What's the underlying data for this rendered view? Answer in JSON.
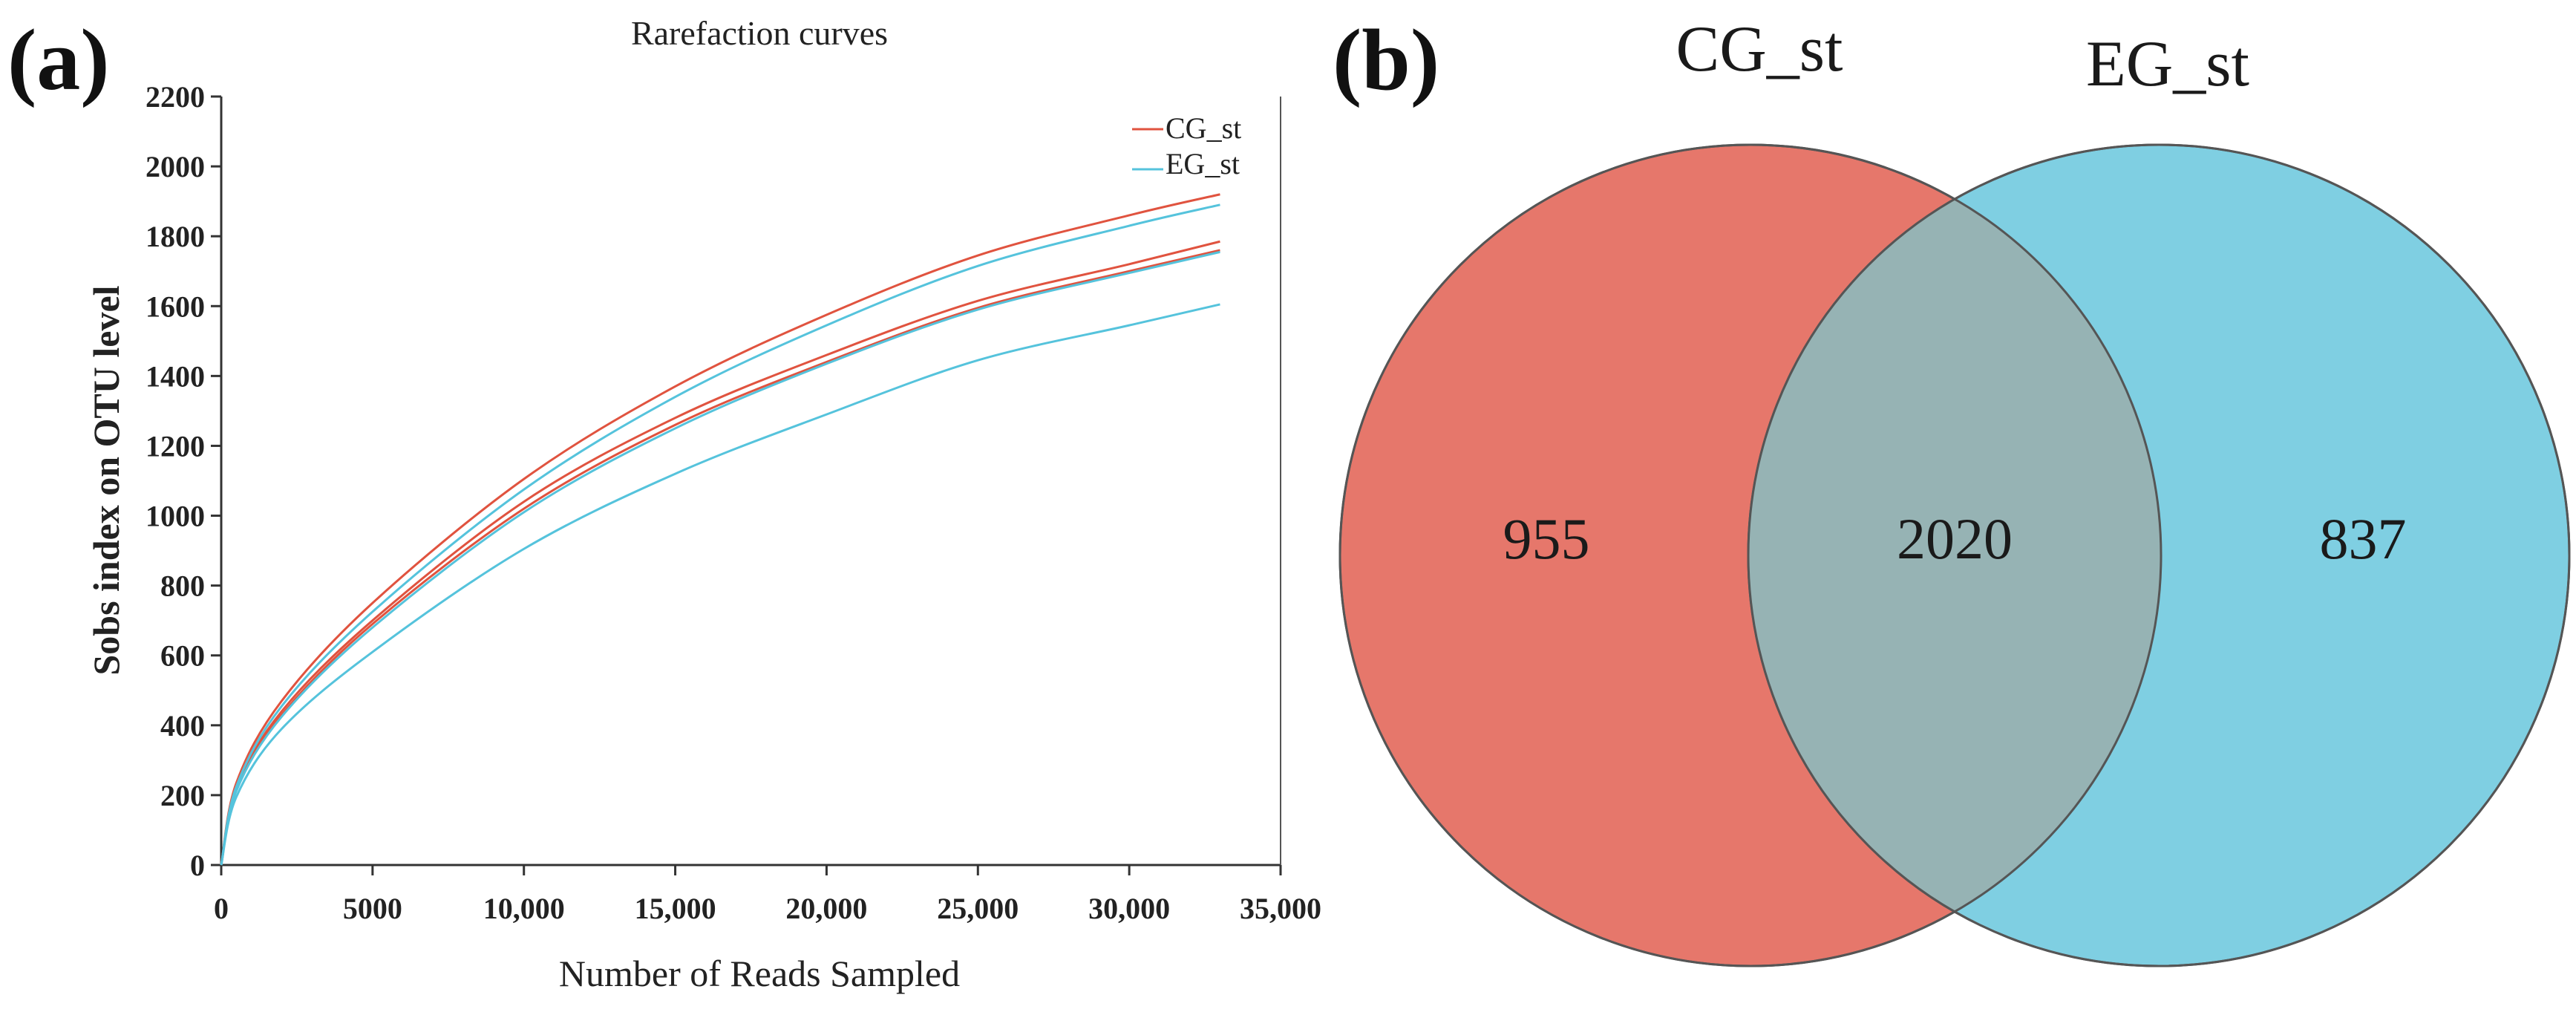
{
  "panels": {
    "a_label": "(a)",
    "b_label": "(b)"
  },
  "chart_data": [
    {
      "type": "line",
      "title": "Rarefaction curves",
      "xlabel": "Number of Reads Sampled",
      "ylabel": "Sobs index on OTU level",
      "xlim": [
        0,
        35000
      ],
      "ylim": [
        0,
        2200
      ],
      "grid": false,
      "legend_position": "top-right",
      "x_ticks": [
        "0",
        "5000",
        "10,000",
        "15,000",
        "20,000",
        "25,000",
        "30,000",
        "35,000"
      ],
      "x_tick_values": [
        0,
        5000,
        10000,
        15000,
        20000,
        25000,
        30000,
        35000
      ],
      "y_ticks": [
        "0",
        "200",
        "400",
        "600",
        "800",
        "1000",
        "1200",
        "1400",
        "1600",
        "1800",
        "2000",
        "2200"
      ],
      "y_tick_values": [
        0,
        200,
        400,
        600,
        800,
        1000,
        1200,
        1400,
        1600,
        1800,
        2000,
        2200
      ],
      "legend": [
        {
          "name": "CG_st",
          "color": "#e0533f"
        },
        {
          "name": "EG_st",
          "color": "#55c3dc"
        }
      ],
      "series": [
        {
          "name": "CG_st",
          "group": "CG_st",
          "color": "#e0533f",
          "x": [
            0,
            500,
            2000,
            5000,
            10000,
            15000,
            20000,
            25000,
            30000,
            33000
          ],
          "values": [
            0,
            235,
            470,
            750,
            1105,
            1370,
            1575,
            1745,
            1860,
            1920
          ]
        },
        {
          "name": "CG_st",
          "group": "CG_st",
          "color": "#e0533f",
          "x": [
            0,
            500,
            2000,
            5000,
            10000,
            15000,
            20000,
            25000,
            30000,
            33000
          ],
          "values": [
            0,
            220,
            440,
            700,
            1040,
            1280,
            1460,
            1615,
            1720,
            1785
          ]
        },
        {
          "name": "CG_st",
          "group": "CG_st",
          "color": "#e0533f",
          "x": [
            0,
            500,
            2000,
            5000,
            10000,
            15000,
            20000,
            25000,
            30000,
            33000
          ],
          "values": [
            0,
            215,
            430,
            690,
            1020,
            1260,
            1440,
            1595,
            1700,
            1760
          ]
        },
        {
          "name": "EG_st",
          "group": "EG_st",
          "color": "#55c3dc",
          "x": [
            0,
            500,
            2000,
            5000,
            10000,
            15000,
            20000,
            25000,
            30000,
            33000
          ],
          "values": [
            0,
            225,
            455,
            725,
            1075,
            1340,
            1545,
            1715,
            1830,
            1890
          ]
        },
        {
          "name": "EG_st",
          "group": "EG_st",
          "color": "#55c3dc",
          "x": [
            0,
            500,
            2000,
            5000,
            10000,
            15000,
            20000,
            25000,
            30000,
            33000
          ],
          "values": [
            0,
            212,
            425,
            680,
            1010,
            1250,
            1435,
            1590,
            1695,
            1755
          ]
        },
        {
          "name": "EG_st",
          "group": "EG_st",
          "color": "#55c3dc",
          "x": [
            0,
            500,
            2000,
            5000,
            10000,
            15000,
            20000,
            25000,
            30000,
            33000
          ],
          "values": [
            0,
            195,
            390,
            610,
            905,
            1120,
            1290,
            1445,
            1545,
            1605
          ]
        }
      ]
    },
    {
      "type": "venn",
      "sets": [
        {
          "name": "CG_st",
          "unique": "955",
          "color": "#e6776b"
        },
        {
          "name": "EG_st",
          "unique": "837",
          "color": "#7fcfe2"
        }
      ],
      "intersection": "2020",
      "intersection_color": "#96b3b4"
    }
  ]
}
